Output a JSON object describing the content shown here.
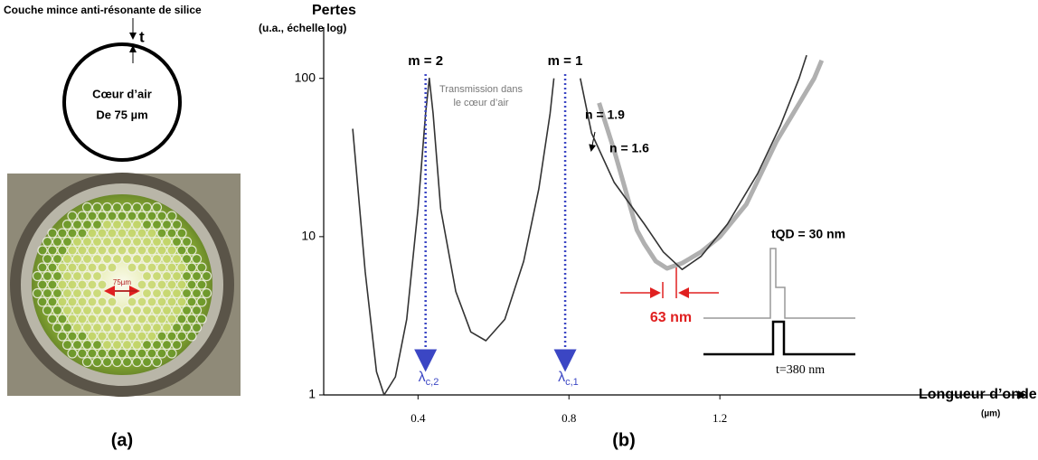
{
  "panel_a": {
    "label": "(a)",
    "layer_caption": "Couche mince anti-résonante de silice",
    "thickness_symbol": "t",
    "core_line1": "Cœur d’air",
    "core_line2": "De 75 µm",
    "scale_label": "75µm"
  },
  "chart_data": {
    "type": "line",
    "panel_label": "(b)",
    "y_label_line1": "Pertes",
    "y_label_line2": "(u.a., échelle log)",
    "x_label": "Longueur d’onde",
    "x_unit": "(µm)",
    "ylog": true,
    "grid": false,
    "xlim": [
      0.15,
      2.0
    ],
    "xticks": [
      0.4,
      0.8,
      1.2
    ],
    "ylim": [
      1,
      200
    ],
    "yticks": [
      1,
      10,
      100
    ],
    "series": [
      {
        "name": "n = 1.6",
        "color": "#333333",
        "x": [
          0.227,
          0.26,
          0.29,
          0.31,
          0.34,
          0.37,
          0.4,
          0.42,
          0.43,
          0.44,
          0.46,
          0.5,
          0.54,
          0.58,
          0.63,
          0.68,
          0.72,
          0.75,
          0.76,
          0.79,
          0.83,
          0.86,
          0.92,
          1.0,
          1.05,
          1.1,
          1.15,
          1.22,
          1.3,
          1.36,
          1.41,
          1.43
        ],
        "values": [
          48,
          6,
          1.4,
          1.0,
          1.3,
          3,
          15,
          60,
          100,
          60,
          15,
          4.5,
          2.5,
          2.2,
          3,
          7,
          20,
          60,
          100,
          null,
          100,
          45,
          22,
          12,
          8,
          6.2,
          7.5,
          12,
          25,
          50,
          100,
          140
        ]
      },
      {
        "name": "n = 1.9",
        "color": "#b0b0b0",
        "x": [
          0.88,
          0.92,
          0.98,
          1.0,
          1.03,
          1.06,
          1.1,
          1.15,
          1.2,
          1.27,
          1.35,
          1.45,
          1.47
        ],
        "values": [
          70,
          35,
          11,
          9,
          7,
          6.3,
          6.8,
          8,
          10,
          16,
          40,
          100,
          130
        ]
      }
    ],
    "annotations": {
      "mode2": "m = 2",
      "mode1": "m = 1",
      "mode2_x": 0.42,
      "mode1_x": 0.79,
      "lambda2": {
        "symbol": "λ",
        "sub": "c,2"
      },
      "lambda1": {
        "symbol": "λ",
        "sub": "c,1"
      },
      "transmission_line1": "Transmission dans",
      "transmission_line2": "le cœur d’air",
      "tqd": "tQD = 30 nm",
      "shift": "63 nm",
      "thickness": "t=380 nm"
    }
  }
}
